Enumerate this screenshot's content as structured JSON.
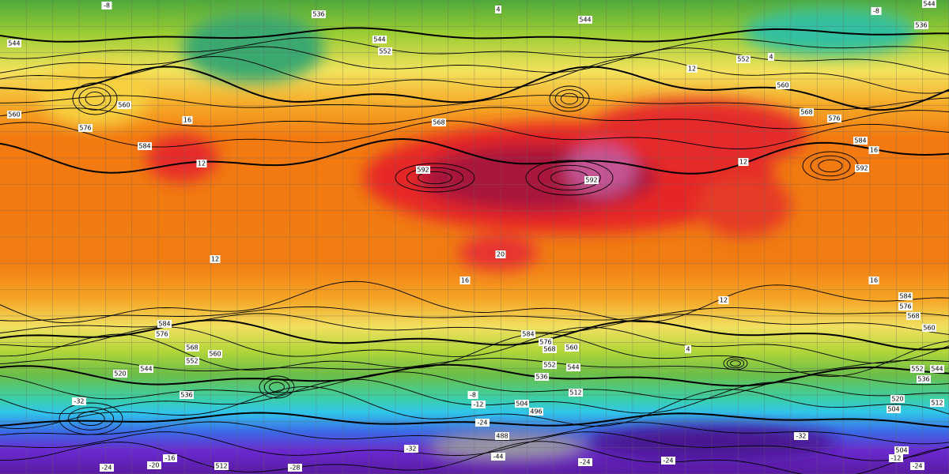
{
  "map": {
    "height_labels": [
      "536",
      "544",
      "544",
      "536",
      "544",
      "544",
      "552",
      "552",
      "560",
      "560",
      "576",
      "584",
      "560",
      "568",
      "576",
      "584",
      "592",
      "592",
      "592",
      "568",
      "584",
      "576",
      "568",
      "560",
      "584",
      "576",
      "568",
      "560",
      "552",
      "544",
      "536",
      "520",
      "512",
      "584",
      "576",
      "568",
      "560",
      "552",
      "544",
      "536",
      "512",
      "504",
      "496",
      "488",
      "504",
      "520",
      "552",
      "544",
      "536",
      "512",
      "504"
    ],
    "temperature_labels": [
      "-8",
      "4",
      "-8",
      "4",
      "12",
      "16",
      "12",
      "16",
      "12",
      "20",
      "16",
      "12",
      "16",
      "12",
      "4",
      "-8",
      "-12",
      "-24",
      "-32",
      "-24",
      "-24",
      "-32",
      "-12",
      "-24",
      "-16",
      "-20",
      "-24",
      "-28",
      "-32",
      "-44"
    ]
  }
}
